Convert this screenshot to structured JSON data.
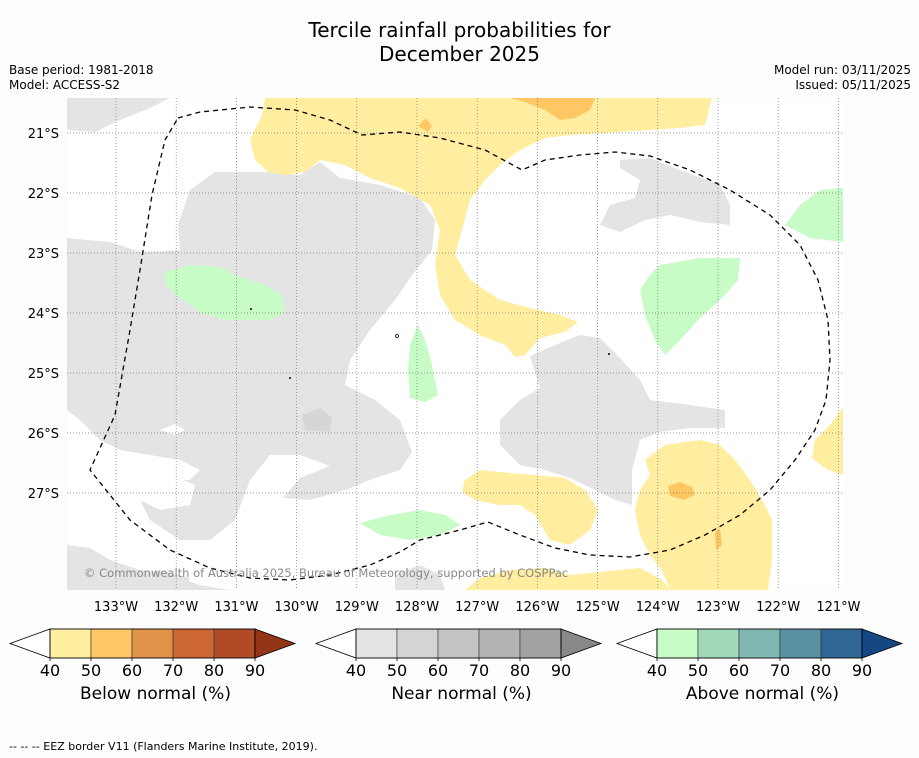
{
  "title": {
    "line1": "Tercile rainfall probabilities for",
    "line2": "December 2025"
  },
  "meta": {
    "base_period": "Base period: 1981-2018",
    "model": "Model: ACCESS-S2",
    "model_run": "Model run: 03/11/2025",
    "issued": "Issued: 05/11/2025"
  },
  "map": {
    "lat_labels": [
      "21°S",
      "22°S",
      "23°S",
      "24°S",
      "25°S",
      "26°S",
      "27°S"
    ],
    "lon_labels": [
      "133°W",
      "132°W",
      "131°W",
      "130°W",
      "129°W",
      "128°W",
      "127°W",
      "126°W",
      "125°W",
      "124°W",
      "123°W",
      "122°W",
      "121°W"
    ],
    "copyright": "© Commonwealth of Australia 2025, Bureau of Meteorology, supported by COSPPac",
    "colors": {
      "land_grey": "#e4e4e4",
      "yellow": "#ffeda0",
      "orange": "#fec763",
      "green": "#c7fcc6",
      "grid": "#888888"
    }
  },
  "colorbars": [
    {
      "label": "Below normal (%)",
      "ticks": [
        "40",
        "50",
        "60",
        "70",
        "80",
        "90"
      ],
      "colors": [
        "#ffeda0",
        "#fec763",
        "#e09348",
        "#cc6633",
        "#b04a27",
        "#933618"
      ]
    },
    {
      "label": "Near normal (%)",
      "ticks": [
        "40",
        "50",
        "60",
        "70",
        "80",
        "90"
      ],
      "colors": [
        "#e4e4e4",
        "#d4d4d4",
        "#c3c3c3",
        "#b3b3b3",
        "#a2a2a2",
        "#888888"
      ]
    },
    {
      "label": "Above normal (%)",
      "ticks": [
        "40",
        "50",
        "60",
        "70",
        "80",
        "90"
      ],
      "colors": [
        "#c7fcc6",
        "#a3d9bb",
        "#80b7b1",
        "#5b92a3",
        "#306693",
        "#154785"
      ]
    }
  ],
  "footnote": "--  --  -- EEZ border V11 (Flanders Marine Institute, 2019)."
}
